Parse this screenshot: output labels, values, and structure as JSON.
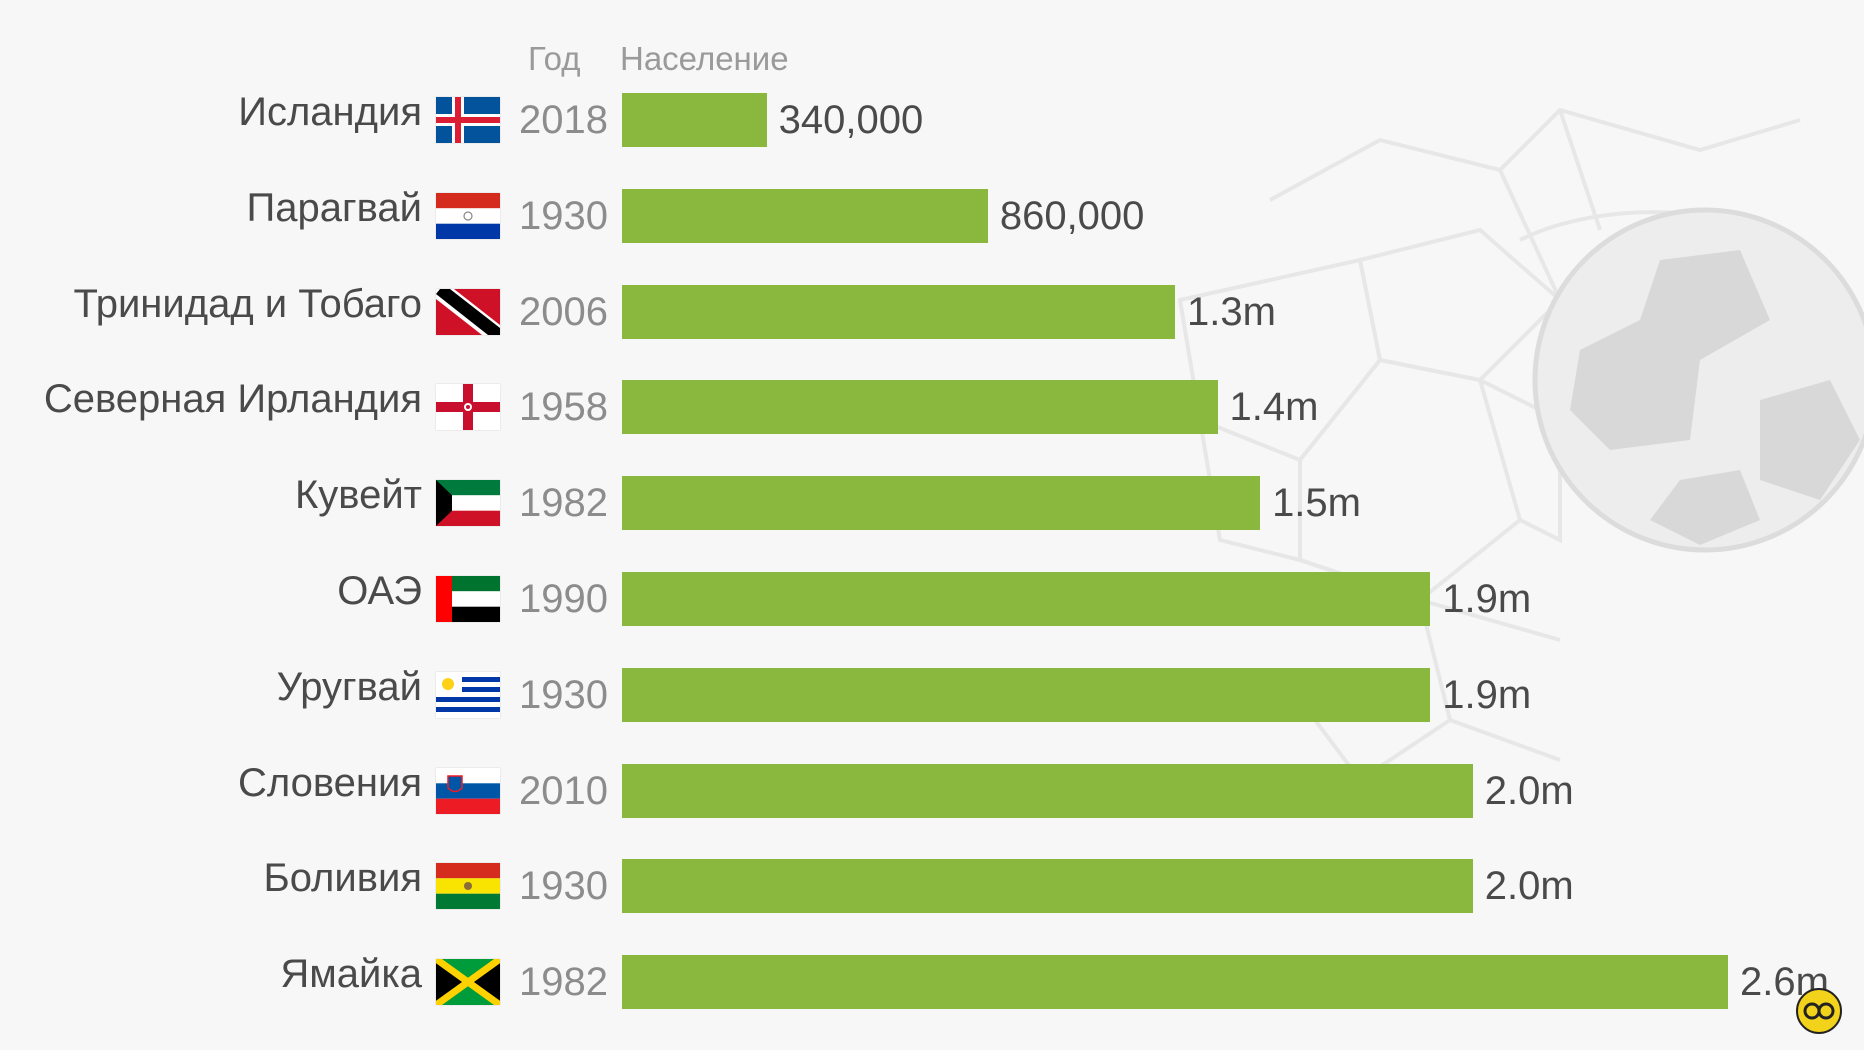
{
  "headers": {
    "year": "Год",
    "population": "Население"
  },
  "colors": {
    "bar": "#8ab83f",
    "background": "#f7f7f7",
    "text": "#4a4a4a",
    "muted": "#8c8c8c"
  },
  "chart_data": {
    "type": "bar",
    "orientation": "horizontal",
    "categories": [
      "Исландия",
      "Парагвай",
      "Тринидад и Тобаго",
      "Северная Ирландия",
      "Кувейт",
      "ОАЭ",
      "Уругвай",
      "Словения",
      "Боливия",
      "Ямайка"
    ],
    "years": [
      "2018",
      "1930",
      "2006",
      "1958",
      "1982",
      "1990",
      "1930",
      "2010",
      "1930",
      "1982"
    ],
    "values": [
      340000,
      860000,
      1300000,
      1400000,
      1500000,
      1900000,
      1900000,
      2000000,
      2000000,
      2600000
    ],
    "value_labels": [
      "340,000",
      "860,000",
      "1.3m",
      "1.4m",
      "1.5m",
      "1.9m",
      "1.9m",
      "2.0m",
      "2.0m",
      "2.6m"
    ],
    "flags": [
      "iceland-flag-icon",
      "paraguay-flag-icon",
      "trinidad-flag-icon",
      "northern-ireland-flag-icon",
      "kuwait-flag-icon",
      "uae-flag-icon",
      "uruguay-flag-icon",
      "slovenia-flag-icon",
      "bolivia-flag-icon",
      "jamaica-flag-icon"
    ],
    "xlim": [
      0,
      2600000
    ],
    "grid": false,
    "legend": "none"
  },
  "logo_icon": "chart-logo-icon"
}
